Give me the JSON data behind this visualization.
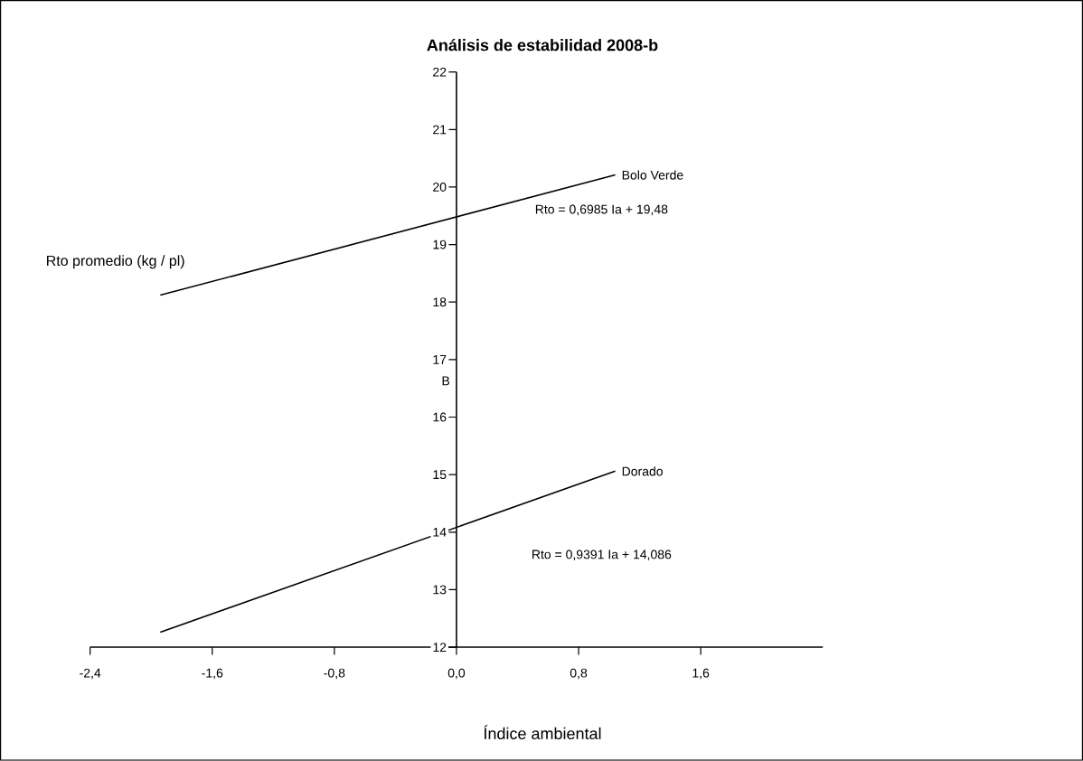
{
  "chart_data": {
    "type": "line",
    "title": "Análisis de estabilidad 2008-b",
    "xlabel": "Índice ambiental",
    "ylabel": "Rto promedio (kg / pl)",
    "xlim": [
      -2.4,
      2.4
    ],
    "ylim": [
      12,
      22
    ],
    "xticks": [
      {
        "value": -2.4,
        "label": "-2,4"
      },
      {
        "value": -1.6,
        "label": "-1,6"
      },
      {
        "value": -0.8,
        "label": "-0,8"
      },
      {
        "value": 0,
        "label": "0,0"
      },
      {
        "value": 0.8,
        "label": "0,8"
      },
      {
        "value": 1.6,
        "label": "1,6"
      }
    ],
    "yticks": [
      12,
      13,
      14,
      15,
      16,
      17,
      18,
      19,
      20,
      21,
      22
    ],
    "x": [
      -1.94,
      1.04
    ],
    "series": [
      {
        "name": "Bolo   Verde",
        "color": "#000000",
        "values": [
          18.12,
          20.21
        ]
      },
      {
        "name": "Dorado",
        "color": "#000000",
        "values": [
          12.26,
          15.06
        ]
      }
    ],
    "annotations": [
      "Rto = 0,6985 Ia + 19,48",
      "Rto = 0,9391 Ia + 14,086",
      "B"
    ],
    "grid": false,
    "legend": false,
    "marker": "none",
    "line_style": "solid"
  }
}
